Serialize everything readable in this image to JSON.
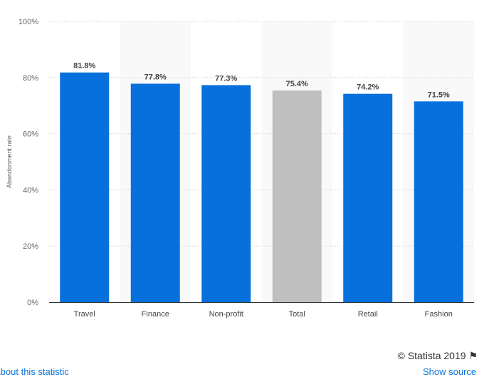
{
  "chart_data": {
    "type": "bar",
    "categories": [
      "Travel",
      "Finance",
      "Non-profit",
      "Total",
      "Retail",
      "Fashion"
    ],
    "values": [
      81.8,
      77.8,
      77.3,
      75.4,
      74.2,
      71.5
    ],
    "data_labels": [
      "81.8%",
      "77.8%",
      "77.3%",
      "75.4%",
      "74.2%",
      "71.5%"
    ],
    "ylabel": "Abandonment rate",
    "xlabel": "",
    "ylim": [
      0,
      100
    ],
    "yticks": [
      "0%",
      "20%",
      "40%",
      "60%",
      "80%",
      "100%"
    ],
    "grid": true,
    "colors": {
      "bar": "#0770dc",
      "highlight": "#bfbfbf",
      "highlight_category": "Total",
      "band": "#f9f9f9"
    }
  },
  "footer": {
    "credit": "© Statista 2019",
    "about_link": "About this statistic",
    "share_link": "Show source"
  }
}
